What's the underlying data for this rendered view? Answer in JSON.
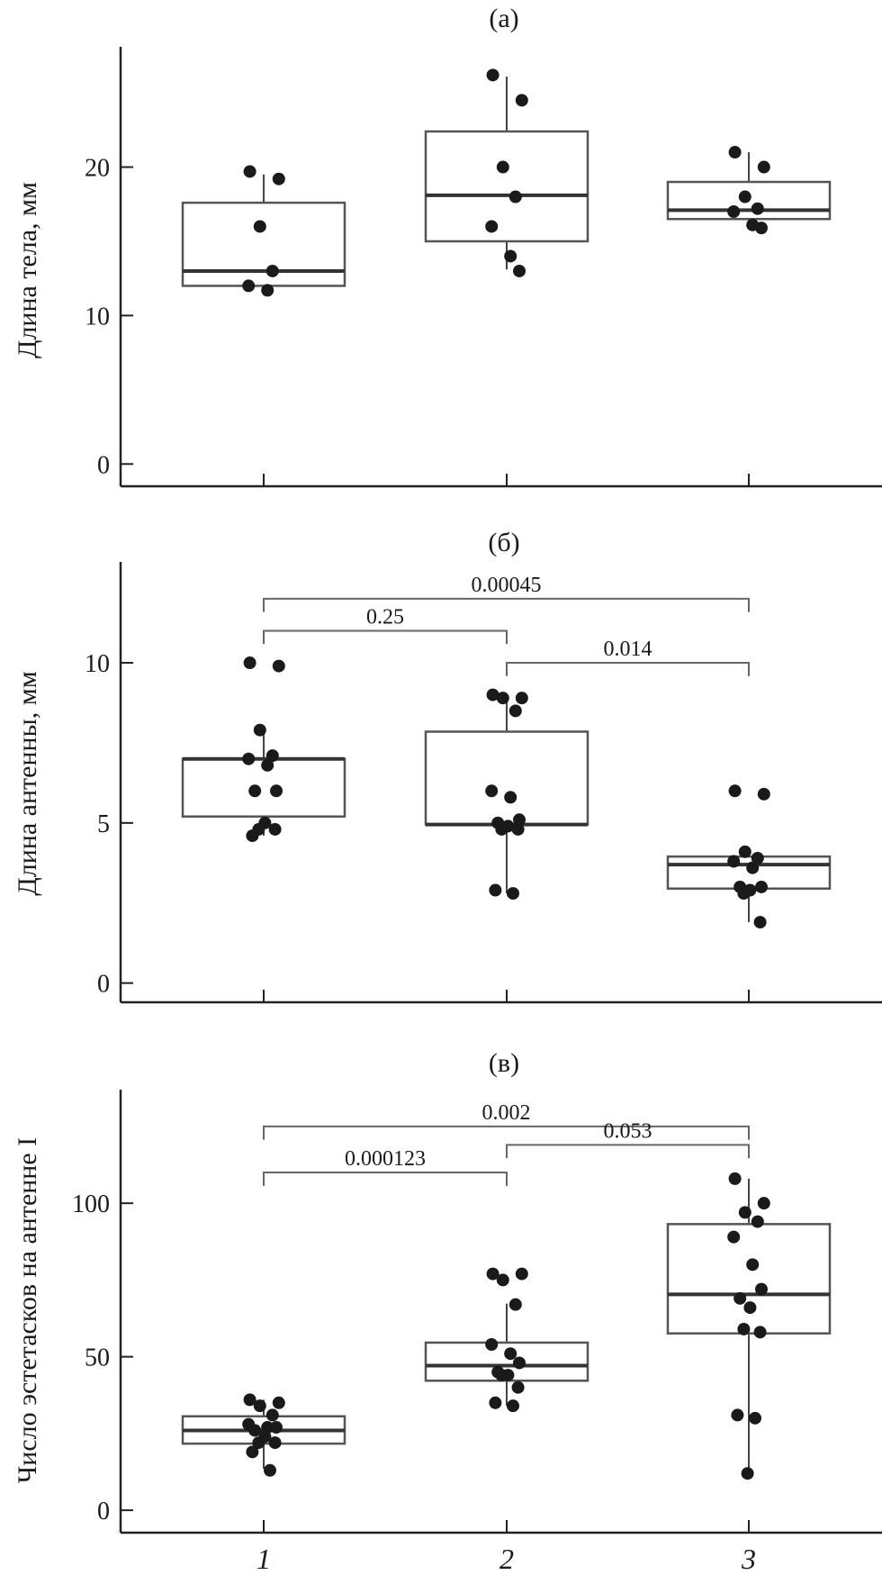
{
  "chart_data": [
    {
      "type": "box",
      "title": "(a)",
      "ylabel": "Длина тела, мм",
      "xlabel": "",
      "categories": [
        "1",
        "2",
        "3"
      ],
      "ylim": [
        -1.5,
        28.1
      ],
      "yticks": [
        0,
        10,
        20
      ],
      "boxes": [
        {
          "whisker_low": 11.4,
          "q1": 12.0,
          "median": 13.0,
          "q3": 17.6,
          "whisker_high": 19.5
        },
        {
          "whisker_low": 13.1,
          "q1": 15.0,
          "median": 18.1,
          "q3": 22.4,
          "whisker_high": 26.1
        },
        {
          "whisker_low": 15.8,
          "q1": 16.5,
          "median": 17.1,
          "q3": 19.0,
          "whisker_high": 21.0
        }
      ],
      "points": [
        [
          19.7,
          19.2,
          16.0,
          13.0,
          12.0,
          11.7
        ],
        [
          26.2,
          24.5,
          20.0,
          18.0,
          16.0,
          14.0,
          13.0
        ],
        [
          21.0,
          20.0,
          18.0,
          17.2,
          17.0,
          16.1,
          15.9
        ]
      ],
      "comparisons": []
    },
    {
      "type": "box",
      "title": "(б)",
      "ylabel": "Длина антенны, мм",
      "xlabel": "",
      "categories": [
        "1",
        "2",
        "3"
      ],
      "ylim": [
        -0.6,
        13.15
      ],
      "yticks": [
        0,
        5,
        10
      ],
      "boxes": [
        {
          "whisker_low": 4.6,
          "q1": 5.2,
          "median": 7.0,
          "q3": 7.0,
          "whisker_high": 7.9
        },
        {
          "whisker_low": 2.8,
          "q1": 4.95,
          "median": 4.95,
          "q3": 7.85,
          "whisker_high": 8.9
        },
        {
          "whisker_low": 1.9,
          "q1": 2.95,
          "median": 3.7,
          "q3": 3.95,
          "whisker_high": 4.1
        }
      ],
      "points": [
        [
          10.0,
          9.9,
          7.9,
          7.1,
          7.0,
          6.8,
          6.0,
          6.0,
          5.0,
          4.8,
          4.8,
          4.6
        ],
        [
          9.0,
          8.9,
          8.9,
          8.5,
          6.0,
          5.8,
          5.1,
          5.0,
          4.9,
          4.8,
          4.8,
          2.9,
          2.8
        ],
        [
          6.0,
          5.9,
          4.1,
          3.9,
          3.8,
          3.6,
          3.0,
          3.0,
          2.9,
          2.8,
          1.9
        ]
      ],
      "comparisons": [
        {
          "from": 1,
          "to": 3,
          "level": 12.0,
          "label": "0.00045"
        },
        {
          "from": 1,
          "to": 2,
          "level": 11.0,
          "label": "0.25"
        },
        {
          "from": 2,
          "to": 3,
          "level": 10.0,
          "label": "0.014"
        }
      ]
    },
    {
      "type": "box",
      "title": "(в)",
      "ylabel": "Число эстетасков на антенне I",
      "xlabel": "",
      "categories": [
        "1",
        "2",
        "3"
      ],
      "ylim": [
        -7.3,
        137
      ],
      "yticks": [
        0,
        50,
        100
      ],
      "boxes": [
        {
          "whisker_low": 13.5,
          "q1": 21.7,
          "median": 26.0,
          "q3": 30.6,
          "whisker_high": 36.0
        },
        {
          "whisker_low": 34.0,
          "q1": 42.2,
          "median": 47.1,
          "q3": 54.6,
          "whisker_high": 67.3
        },
        {
          "whisker_low": 12.0,
          "q1": 57.6,
          "median": 70.3,
          "q3": 93.2,
          "whisker_high": 108.0
        }
      ],
      "points": [
        [
          36,
          35,
          34,
          31,
          28,
          27,
          27,
          26,
          24,
          22,
          22,
          19,
          13
        ],
        [
          77,
          77,
          75,
          67,
          54,
          51,
          48,
          45,
          44,
          44,
          40,
          35,
          34
        ],
        [
          108,
          100,
          97,
          94,
          89,
          80,
          72,
          69,
          66,
          59,
          58,
          31,
          30,
          12
        ]
      ],
      "comparisons": [
        {
          "from": 1,
          "to": 3,
          "level": 125,
          "label": "0.002"
        },
        {
          "from": 2,
          "to": 3,
          "level": 119,
          "label": "0.053"
        },
        {
          "from": 1,
          "to": 2,
          "level": 110,
          "label": "0.000123"
        }
      ]
    }
  ]
}
